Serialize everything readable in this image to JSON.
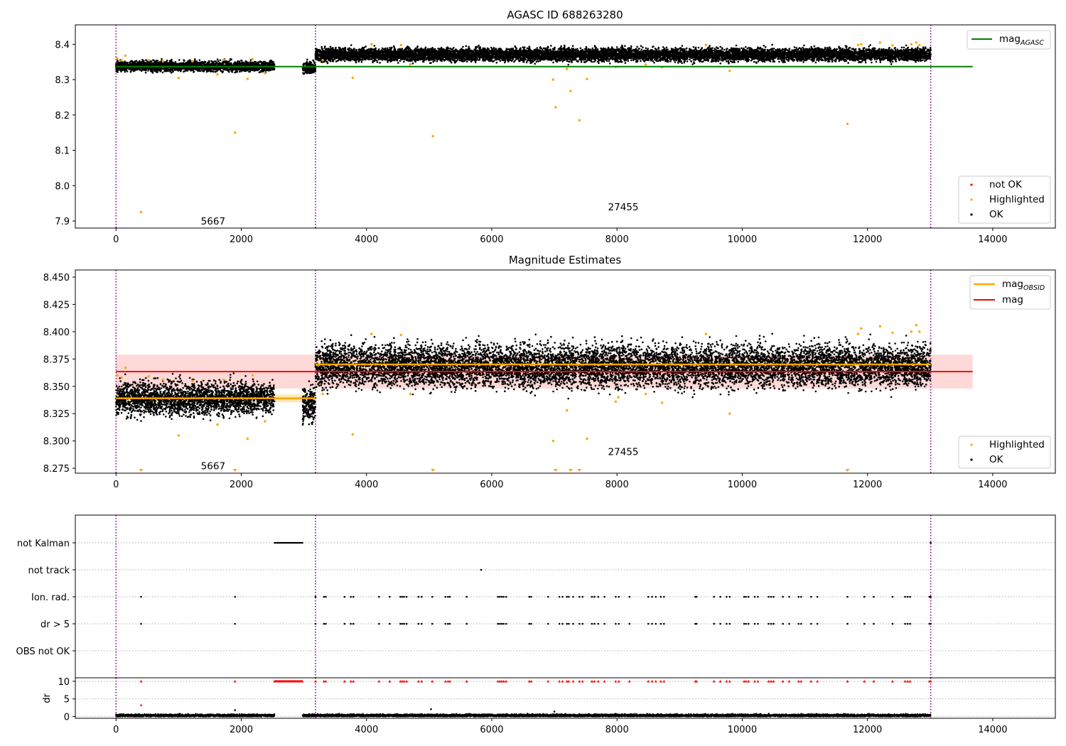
{
  "figure": {
    "panel1_title": "AGASC ID 688263280",
    "panel2_title": "Magnitude Estimates"
  },
  "colors": {
    "ok": "#000000",
    "highlighted": "#ffa500",
    "not_ok": "#ff0000",
    "agasc_line": "#008000",
    "mag_line": "#ff0000",
    "obsid_line": "#ffa500",
    "vline": "#800080",
    "mag_band": "#ffd8d8"
  },
  "chart_data": [
    {
      "type": "scatter",
      "title": "AGASC ID 688263280",
      "xlim": [
        -650,
        15000
      ],
      "ylim": [
        7.88,
        8.455
      ],
      "xticks": [
        0,
        2000,
        4000,
        6000,
        8000,
        10000,
        12000,
        14000
      ],
      "yticks": [
        7.9,
        8.0,
        8.1,
        8.2,
        8.3,
        8.4
      ],
      "obs_boundaries": [
        0,
        3185,
        13010
      ],
      "obs_labels": [
        {
          "text": "5667",
          "x": 1550,
          "y": 7.89
        },
        {
          "text": "27455",
          "x": 8100,
          "y": 7.93
        }
      ],
      "lines": [
        {
          "name": "mag",
          "sub": "AGASC",
          "y": 8.337,
          "x_range": [
            0,
            13680
          ],
          "color": "#008000"
        }
      ],
      "series": [
        {
          "name": "not OK",
          "color": "#ff0000"
        },
        {
          "name": "Highlighted",
          "color": "#ffa500"
        },
        {
          "name": "OK",
          "color": "#000000"
        }
      ],
      "ok_segments": [
        {
          "x": [
            0,
            2530
          ],
          "mean": 8.338,
          "spread": 0.007
        },
        {
          "x": [
            2980,
            3185
          ],
          "mean": 8.333,
          "spread": 0.008
        },
        {
          "x": [
            3185,
            13010
          ],
          "mean": 8.371,
          "spread": 0.009
        }
      ],
      "highlighted_points": [
        [
          20,
          8.36
        ],
        [
          90,
          8.355
        ],
        [
          150,
          8.368
        ],
        [
          400,
          7.925
        ],
        [
          520,
          8.355
        ],
        [
          750,
          8.352
        ],
        [
          1000,
          8.305
        ],
        [
          1220,
          8.352
        ],
        [
          1620,
          8.315
        ],
        [
          1720,
          8.356
        ],
        [
          1900,
          8.15
        ],
        [
          2100,
          8.302
        ],
        [
          2180,
          8.358
        ],
        [
          2380,
          8.318
        ],
        [
          3300,
          8.355
        ],
        [
          3780,
          8.305
        ],
        [
          4080,
          8.4
        ],
        [
          4550,
          8.398
        ],
        [
          4700,
          8.343
        ],
        [
          5060,
          8.14
        ],
        [
          6980,
          8.3
        ],
        [
          7020,
          8.222
        ],
        [
          7200,
          8.33
        ],
        [
          7260,
          8.268
        ],
        [
          7400,
          8.185
        ],
        [
          7520,
          8.302
        ],
        [
          7980,
          8.336
        ],
        [
          8460,
          8.343
        ],
        [
          8720,
          8.335
        ],
        [
          9420,
          8.398
        ],
        [
          9800,
          8.325
        ],
        [
          11680,
          8.175
        ],
        [
          11850,
          8.398
        ],
        [
          11900,
          8.4
        ],
        [
          12200,
          8.405
        ],
        [
          12400,
          8.397
        ],
        [
          12700,
          8.4
        ],
        [
          12780,
          8.405
        ],
        [
          12830,
          8.398
        ]
      ]
    },
    {
      "type": "scatter",
      "title": "Magnitude Estimates",
      "xlim": [
        -650,
        15000
      ],
      "ylim": [
        8.2705,
        8.4565
      ],
      "xticks": [
        0,
        2000,
        4000,
        6000,
        8000,
        10000,
        12000,
        14000
      ],
      "yticks": [
        8.275,
        8.3,
        8.325,
        8.35,
        8.375,
        8.4,
        8.425,
        8.45
      ],
      "obs_boundaries": [
        0,
        3185,
        13010
      ],
      "obs_labels": [
        {
          "text": "5667",
          "x": 1550,
          "y": 8.274
        },
        {
          "text": "27455",
          "x": 8100,
          "y": 8.287
        }
      ],
      "mag": {
        "value": 8.3635,
        "band": [
          8.348,
          8.379
        ],
        "x_range": [
          0,
          13680
        ]
      },
      "mag_obsid": [
        {
          "x": [
            0,
            3185
          ],
          "value": 8.339,
          "band": [
            8.3355,
            8.3425
          ]
        },
        {
          "x": [
            3185,
            13010
          ],
          "value": 8.37,
          "band": [
            8.3665,
            8.3735
          ]
        }
      ],
      "series": [
        {
          "name": "Highlighted",
          "color": "#ffa500"
        },
        {
          "name": "OK",
          "color": "#000000"
        }
      ],
      "ok_segments": [
        {
          "x": [
            0,
            2530
          ],
          "mean": 8.339,
          "spread": 0.0075
        },
        {
          "x": [
            2980,
            3185
          ],
          "mean": 8.333,
          "spread": 0.008
        },
        {
          "x": [
            3185,
            13010
          ],
          "mean": 8.369,
          "spread": 0.0095
        }
      ],
      "highlighted_points": [
        [
          20,
          8.36
        ],
        [
          90,
          8.358
        ],
        [
          150,
          8.367
        ],
        [
          520,
          8.359
        ],
        [
          750,
          8.356
        ],
        [
          1000,
          8.305
        ],
        [
          1220,
          8.355
        ],
        [
          1620,
          8.315
        ],
        [
          1720,
          8.356
        ],
        [
          2100,
          8.302
        ],
        [
          2180,
          8.36
        ],
        [
          2380,
          8.318
        ],
        [
          3300,
          8.343
        ],
        [
          3780,
          8.306
        ],
        [
          4080,
          8.398
        ],
        [
          4550,
          8.397
        ],
        [
          4700,
          8.343
        ],
        [
          6980,
          8.3
        ],
        [
          7200,
          8.328
        ],
        [
          7520,
          8.302
        ],
        [
          7980,
          8.336
        ],
        [
          8020,
          8.34
        ],
        [
          8460,
          8.343
        ],
        [
          8720,
          8.335
        ],
        [
          9420,
          8.398
        ],
        [
          9800,
          8.325
        ],
        [
          11850,
          8.398
        ],
        [
          11900,
          8.403
        ],
        [
          12200,
          8.405
        ],
        [
          12400,
          8.399
        ],
        [
          12700,
          8.4
        ],
        [
          12780,
          8.406
        ],
        [
          12830,
          8.4
        ]
      ],
      "clipped_low_x": [
        400,
        1900,
        5060,
        7020,
        7260,
        7400,
        11680
      ]
    },
    {
      "type": "scatter",
      "title": "",
      "xlim": [
        -650,
        15000
      ],
      "xticks": [
        0,
        2000,
        4000,
        6000,
        8000,
        10000,
        12000,
        14000
      ],
      "flag_rows": [
        "not Kalman",
        "not track",
        "Ion. rad.",
        "dr > 5",
        "OBS not OK"
      ],
      "flags": {
        "not Kalman": {
          "ranges": [
            [
              2530,
              2980
            ]
          ],
          "points": [
            13010
          ]
        },
        "not track": {
          "points": [
            5830
          ]
        },
        "Ion. rad.": {
          "points": [
            400,
            1900,
            3185,
            3320,
            3350,
            3650,
            3750,
            3790,
            4200,
            4370,
            4540,
            4570,
            4600,
            4640,
            4830,
            4880,
            5050,
            5260,
            5300,
            5330,
            5600,
            6100,
            6130,
            6160,
            6190,
            6230,
            6600,
            6630,
            6900,
            7080,
            7130,
            7200,
            7230,
            7300,
            7400,
            7450,
            7600,
            7640,
            7700,
            7800,
            7980,
            8030,
            8200,
            8500,
            8560,
            8620,
            8700,
            8750,
            9250,
            9270,
            9550,
            9650,
            9750,
            9800,
            10030,
            10060,
            10100,
            10200,
            10250,
            10420,
            10460,
            10500,
            10650,
            10750,
            10900,
            10940,
            11100,
            11200,
            11680,
            11950,
            12100,
            12400,
            12600,
            12640,
            12680,
            12990,
            13010
          ]
        },
        "dr > 5": {
          "points": [
            400,
            1900,
            3185,
            3320,
            3350,
            3650,
            3750,
            3790,
            4200,
            4370,
            4540,
            4570,
            4600,
            4640,
            4830,
            4880,
            5050,
            5260,
            5300,
            5330,
            5600,
            6100,
            6130,
            6160,
            6190,
            6230,
            6600,
            6630,
            6900,
            7080,
            7130,
            7200,
            7230,
            7300,
            7400,
            7450,
            7600,
            7640,
            7700,
            7800,
            7980,
            8030,
            8200,
            8500,
            8560,
            8620,
            8700,
            8750,
            9250,
            9270,
            9550,
            9650,
            9750,
            9800,
            10030,
            10060,
            10100,
            10200,
            10250,
            10420,
            10460,
            10500,
            10650,
            10750,
            10900,
            10940,
            11100,
            11200,
            11680,
            11950,
            12100,
            12400,
            12600,
            12640,
            12680,
            12990,
            13010
          ]
        },
        "OBS not OK": {
          "points": []
        }
      },
      "dr": {
        "ylabel": "dr",
        "yticks": [
          0,
          5,
          10
        ],
        "ylim": [
          -0.5,
          11
        ],
        "clip_value": 10,
        "clip_ranges": [
          [
            2530,
            2980
          ]
        ],
        "low_segments": [
          [
            0,
            2530
          ],
          [
            2980,
            13010
          ]
        ],
        "low_mean": 0.3,
        "extra_points": [
          [
            400,
            3.2
          ],
          [
            1900,
            1.8
          ],
          [
            5030,
            2.1
          ],
          [
            7000,
            1.4
          ]
        ]
      }
    }
  ]
}
